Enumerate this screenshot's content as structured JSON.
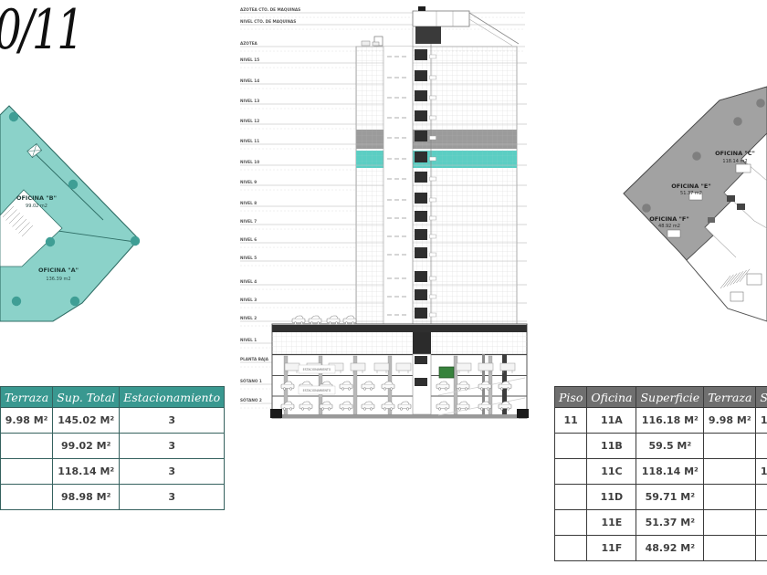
{
  "page": {
    "title": "0/11"
  },
  "plans": {
    "left": {
      "fill_color": "#8bd2c9",
      "offices": [
        {
          "name": "OFICINA \"B\"",
          "area": "99.02 m2"
        },
        {
          "name": "OFICINA \"A\"",
          "area": "136.39 m2"
        }
      ]
    },
    "right": {
      "fill_color": "#a2a2a2",
      "offices": [
        {
          "name": "OFICINA \"C\"",
          "area": "118.14 m2"
        },
        {
          "name": "OFICINA \"E\"",
          "area": "51.37 m2"
        },
        {
          "name": "OFICINA \"F\"",
          "area": "48.92 m2"
        }
      ]
    }
  },
  "elevation": {
    "levels": [
      "AZOTEA CTO. DE MAQUINAS",
      "NIVEL CTO. DE MAQUINAS",
      "AZOTEA",
      "NIVEL 15",
      "NIVEL 14",
      "NIVEL 13",
      "NIVEL 12",
      "NIVEL 11",
      "NIVEL 10",
      "NIVEL 9",
      "NIVEL 8",
      "NIVEL 7",
      "NIVEL 6",
      "NIVEL 5",
      "NIVEL 4",
      "NIVEL 3",
      "NIVEL 2",
      "NIVEL 1",
      "PLANTA BAJA",
      "SÓTANO 1",
      "SÓTANO 2"
    ],
    "parking_label": "ESTACIONAMIENTO",
    "highlight_upper_color": "#9b9b9b",
    "highlight_lower_color": "#5bcec3"
  },
  "tables": {
    "left": {
      "columns": [
        "Terraza",
        "Sup. Total",
        "Estacionamiento"
      ],
      "rows": [
        [
          "9.98 M²",
          "145.02 M²",
          "3"
        ],
        [
          "",
          "99.02 M²",
          "3"
        ],
        [
          "",
          "118.14 M²",
          "3"
        ],
        [
          "",
          "98.98 M²",
          "3"
        ]
      ]
    },
    "right": {
      "columns": [
        "Piso",
        "Oficina",
        "Superficie",
        "Terraza",
        "S"
      ],
      "rows": [
        [
          "11",
          "11A",
          "116.18 M²",
          "9.98 M²",
          "1"
        ],
        [
          "",
          "11B",
          "59.5 M²",
          "",
          ""
        ],
        [
          "",
          "11C",
          "118.14 M²",
          "",
          "1"
        ],
        [
          "",
          "11D",
          "59.71 M²",
          "",
          ""
        ],
        [
          "",
          "11E",
          "51.37 M²",
          "",
          ""
        ],
        [
          "",
          "11F",
          "48.92 M²",
          "",
          ""
        ]
      ]
    }
  },
  "colors": {
    "accent_teal": "#399890",
    "accent_gray": "#6f6f6f"
  }
}
